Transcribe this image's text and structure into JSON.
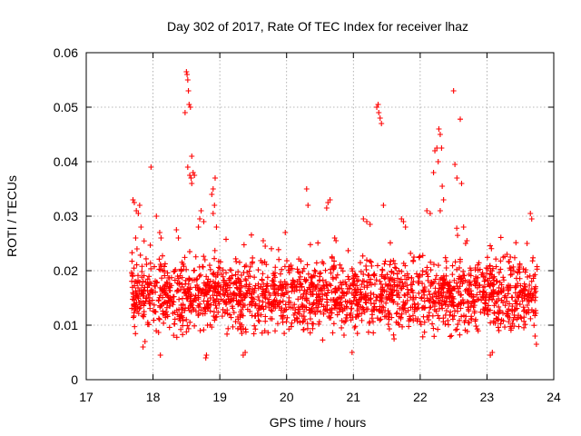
{
  "chart_data": {
    "type": "scatter",
    "title": "Day 302 of 2017, Rate Of TEC Index for receiver lhaz",
    "xlabel": "GPS time / hours",
    "ylabel": "ROTI / TECUs",
    "xlim": [
      17,
      24
    ],
    "ylim": [
      0,
      0.06
    ],
    "x_ticks": [
      "17",
      "18",
      "19",
      "20",
      "21",
      "22",
      "23",
      "24"
    ],
    "y_ticks": [
      "0",
      "0.01",
      "0.02",
      "0.03",
      "0.04",
      "0.05",
      "0.06"
    ],
    "grid": true,
    "marker": "+",
    "color": "#ff0000",
    "series": [
      {
        "name": "ROTI",
        "x_range": [
          17.68,
          23.75
        ],
        "baseline": [
          0.006,
          0.022
        ],
        "points": [
          {
            "x": 17.7,
            "y": 0.033
          },
          {
            "x": 17.72,
            "y": 0.0325
          },
          {
            "x": 17.75,
            "y": 0.031
          },
          {
            "x": 17.78,
            "y": 0.0305
          },
          {
            "x": 17.8,
            "y": 0.032
          },
          {
            "x": 17.74,
            "y": 0.026
          },
          {
            "x": 17.76,
            "y": 0.024
          },
          {
            "x": 17.82,
            "y": 0.028
          },
          {
            "x": 17.85,
            "y": 0.006
          },
          {
            "x": 17.88,
            "y": 0.007
          },
          {
            "x": 17.97,
            "y": 0.039
          },
          {
            "x": 18.1,
            "y": 0.027
          },
          {
            "x": 18.12,
            "y": 0.026
          },
          {
            "x": 18.05,
            "y": 0.03
          },
          {
            "x": 18.11,
            "y": 0.0045
          },
          {
            "x": 18.35,
            "y": 0.0275
          },
          {
            "x": 18.38,
            "y": 0.026
          },
          {
            "x": 18.48,
            "y": 0.049
          },
          {
            "x": 18.5,
            "y": 0.0565
          },
          {
            "x": 18.51,
            "y": 0.056
          },
          {
            "x": 18.52,
            "y": 0.055
          },
          {
            "x": 18.53,
            "y": 0.053
          },
          {
            "x": 18.54,
            "y": 0.0505
          },
          {
            "x": 18.56,
            "y": 0.05
          },
          {
            "x": 18.58,
            "y": 0.041
          },
          {
            "x": 18.52,
            "y": 0.039
          },
          {
            "x": 18.55,
            "y": 0.0375
          },
          {
            "x": 18.57,
            "y": 0.037
          },
          {
            "x": 18.6,
            "y": 0.038
          },
          {
            "x": 18.62,
            "y": 0.0375
          },
          {
            "x": 18.58,
            "y": 0.036
          },
          {
            "x": 18.7,
            "y": 0.0295
          },
          {
            "x": 18.72,
            "y": 0.031
          },
          {
            "x": 18.68,
            "y": 0.028
          },
          {
            "x": 18.76,
            "y": 0.029
          },
          {
            "x": 18.79,
            "y": 0.004
          },
          {
            "x": 18.8,
            "y": 0.0045
          },
          {
            "x": 18.88,
            "y": 0.034
          },
          {
            "x": 18.9,
            "y": 0.035
          },
          {
            "x": 18.93,
            "y": 0.037
          },
          {
            "x": 18.92,
            "y": 0.032
          },
          {
            "x": 18.9,
            "y": 0.0305
          },
          {
            "x": 18.95,
            "y": 0.028
          },
          {
            "x": 19.35,
            "y": 0.0045
          },
          {
            "x": 19.38,
            "y": 0.005
          },
          {
            "x": 19.65,
            "y": 0.0255
          },
          {
            "x": 19.68,
            "y": 0.0245
          },
          {
            "x": 19.98,
            "y": 0.027
          },
          {
            "x": 20.3,
            "y": 0.035
          },
          {
            "x": 20.32,
            "y": 0.032
          },
          {
            "x": 20.62,
            "y": 0.0325
          },
          {
            "x": 20.65,
            "y": 0.033
          },
          {
            "x": 20.6,
            "y": 0.0315
          },
          {
            "x": 20.72,
            "y": 0.026
          },
          {
            "x": 20.74,
            "y": 0.0255
          },
          {
            "x": 20.98,
            "y": 0.005
          },
          {
            "x": 21.15,
            "y": 0.0295
          },
          {
            "x": 21.2,
            "y": 0.029
          },
          {
            "x": 21.25,
            "y": 0.0285
          },
          {
            "x": 21.35,
            "y": 0.05
          },
          {
            "x": 21.37,
            "y": 0.0505
          },
          {
            "x": 21.38,
            "y": 0.049
          },
          {
            "x": 21.4,
            "y": 0.048
          },
          {
            "x": 21.42,
            "y": 0.047
          },
          {
            "x": 21.45,
            "y": 0.032
          },
          {
            "x": 21.72,
            "y": 0.0295
          },
          {
            "x": 21.75,
            "y": 0.029
          },
          {
            "x": 21.78,
            "y": 0.028
          },
          {
            "x": 22.1,
            "y": 0.031
          },
          {
            "x": 22.15,
            "y": 0.0305
          },
          {
            "x": 22.2,
            "y": 0.038
          },
          {
            "x": 22.22,
            "y": 0.042
          },
          {
            "x": 22.25,
            "y": 0.0425
          },
          {
            "x": 22.28,
            "y": 0.046
          },
          {
            "x": 22.3,
            "y": 0.045
          },
          {
            "x": 22.32,
            "y": 0.0425
          },
          {
            "x": 22.27,
            "y": 0.04
          },
          {
            "x": 22.33,
            "y": 0.0355
          },
          {
            "x": 22.35,
            "y": 0.033
          },
          {
            "x": 22.3,
            "y": 0.031
          },
          {
            "x": 22.5,
            "y": 0.053
          },
          {
            "x": 22.52,
            "y": 0.0395
          },
          {
            "x": 22.55,
            "y": 0.037
          },
          {
            "x": 22.6,
            "y": 0.0478
          },
          {
            "x": 22.62,
            "y": 0.036
          },
          {
            "x": 22.65,
            "y": 0.028
          },
          {
            "x": 22.7,
            "y": 0.0255
          },
          {
            "x": 22.68,
            "y": 0.025
          },
          {
            "x": 23.05,
            "y": 0.0045
          },
          {
            "x": 23.08,
            "y": 0.005
          },
          {
            "x": 23.3,
            "y": 0.023
          },
          {
            "x": 23.35,
            "y": 0.0225
          },
          {
            "x": 23.6,
            "y": 0.025
          },
          {
            "x": 23.65,
            "y": 0.0305
          },
          {
            "x": 23.67,
            "y": 0.0295
          },
          {
            "x": 23.7,
            "y": 0.019
          },
          {
            "x": 23.72,
            "y": 0.008
          },
          {
            "x": 23.74,
            "y": 0.0065
          }
        ]
      }
    ]
  }
}
